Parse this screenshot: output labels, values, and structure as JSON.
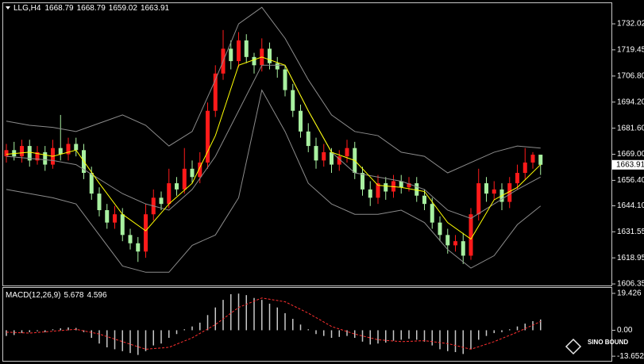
{
  "chart_data": [
    {
      "type": "candlestick",
      "title": "LLG,H4",
      "up_color": "#ff1a1a",
      "down_color": "#a8f0a0",
      "open": [
        1668,
        1671,
        1668,
        1673,
        1666,
        1670,
        1664,
        1672,
        1669,
        1674,
        1671,
        1660,
        1650,
        1642,
        1636,
        1640,
        1630,
        1626,
        1622,
        1640,
        1648,
        1645,
        1655,
        1652,
        1662,
        1658,
        1665,
        1690,
        1708,
        1720,
        1714,
        1724,
        1716,
        1712,
        1720,
        1713,
        1710,
        1700,
        1690,
        1680,
        1673,
        1666,
        1670,
        1664,
        1668,
        1672,
        1660,
        1652,
        1648,
        1655,
        1651,
        1656,
        1653,
        1655,
        1649,
        1645,
        1636,
        1630,
        1625,
        1627,
        1620,
        1640,
        1655,
        1650,
        1652,
        1646,
        1655,
        1660,
        1665,
        1668.79
      ],
      "high": [
        1674,
        1675,
        1676,
        1676,
        1673,
        1673,
        1676,
        1688,
        1677,
        1677,
        1674,
        1663,
        1653,
        1645,
        1644,
        1643,
        1633,
        1629,
        1645,
        1652,
        1651,
        1662,
        1658,
        1672,
        1666,
        1670,
        1694,
        1712,
        1729,
        1724,
        1728,
        1727,
        1718,
        1725,
        1723,
        1716,
        1712,
        1703,
        1693,
        1684,
        1677,
        1674,
        1672,
        1671,
        1676,
        1675,
        1663,
        1656,
        1659,
        1658,
        1659,
        1659,
        1658,
        1658,
        1652,
        1648,
        1639,
        1633,
        1630,
        1631,
        1643,
        1662,
        1658,
        1656,
        1655,
        1658,
        1664,
        1672,
        1670,
        1668.79
      ],
      "low": [
        1665,
        1666,
        1665,
        1663,
        1664,
        1661,
        1662,
        1666,
        1666,
        1668,
        1657,
        1647,
        1639,
        1633,
        1633,
        1627,
        1623,
        1617,
        1619,
        1637,
        1642,
        1643,
        1649,
        1650,
        1655,
        1655,
        1662,
        1687,
        1705,
        1710,
        1711,
        1713,
        1708,
        1709,
        1710,
        1706,
        1697,
        1687,
        1677,
        1670,
        1662,
        1663,
        1660,
        1661,
        1665,
        1657,
        1649,
        1644,
        1645,
        1647,
        1648,
        1650,
        1651,
        1646,
        1642,
        1633,
        1627,
        1621,
        1622,
        1616,
        1618,
        1637,
        1646,
        1647,
        1642,
        1643,
        1652,
        1657,
        1662,
        1659.02
      ],
      "close": [
        1671,
        1668,
        1673,
        1666,
        1670,
        1664,
        1672,
        1669,
        1674,
        1671,
        1660,
        1650,
        1642,
        1636,
        1640,
        1630,
        1626,
        1622,
        1640,
        1648,
        1645,
        1655,
        1652,
        1662,
        1658,
        1665,
        1690,
        1708,
        1720,
        1714,
        1724,
        1716,
        1712,
        1720,
        1713,
        1710,
        1700,
        1690,
        1680,
        1673,
        1666,
        1670,
        1664,
        1668,
        1672,
        1660,
        1652,
        1648,
        1655,
        1651,
        1656,
        1653,
        1655,
        1649,
        1645,
        1636,
        1630,
        1625,
        1627,
        1620,
        1640,
        1655,
        1650,
        1652,
        1646,
        1655,
        1660,
        1665,
        1668.79,
        1663.91
      ],
      "overlay_x": [
        0,
        3,
        6,
        9,
        12,
        15,
        18,
        21,
        24,
        27,
        30,
        33,
        36,
        39,
        42,
        45,
        48,
        51,
        54,
        57,
        60,
        63,
        66,
        69
      ],
      "overlays": [
        {
          "color": "#8c8c8c",
          "values": [
            1685,
            1683,
            1682,
            1680,
            1684,
            1688,
            1683,
            1673,
            1680,
            1705,
            1732,
            1740,
            1725,
            1705,
            1688,
            1680,
            1678,
            1670,
            1668,
            1660,
            1665,
            1670,
            1673,
            1672
          ]
        },
        {
          "color": "#8c8c8c",
          "values": [
            1668,
            1667,
            1666,
            1664,
            1657,
            1650,
            1645,
            1642,
            1652,
            1668,
            1690,
            1712,
            1712,
            1690,
            1670,
            1660,
            1658,
            1656,
            1652,
            1642,
            1638,
            1645,
            1652,
            1658
          ]
        },
        {
          "color": "#8c8c8c",
          "values": [
            1652,
            1650,
            1648,
            1645,
            1630,
            1615,
            1612,
            1612,
            1625,
            1630,
            1648,
            1700,
            1680,
            1655,
            1645,
            1640,
            1640,
            1642,
            1636,
            1623,
            1614,
            1620,
            1635,
            1644
          ]
        },
        {
          "color": "#ffff00",
          "values": [
            1669,
            1670,
            1668,
            1671,
            1655,
            1640,
            1632,
            1645,
            1655,
            1678,
            1712,
            1716,
            1712,
            1690,
            1670,
            1666,
            1654,
            1653,
            1651,
            1636,
            1628,
            1647,
            1653,
            1664
          ]
        }
      ],
      "ylim": [
        1605.6,
        1742
      ],
      "yticks": [
        1732.02,
        1719.45,
        {
          "value": 1706.8,
          "label": "1706.80"
        },
        {
          "value": 1694.2,
          "label": "1694.20"
        },
        {
          "value": 1681.6,
          "label": "1681.60"
        },
        {
          "value": 1669,
          "label": "1669.00"
        },
        {
          "value": 1656.4,
          "label": "1656.40"
        },
        {
          "value": 1644.1,
          "label": "1644.10"
        },
        1631.55,
        1618.95,
        1606.35
      ]
    },
    {
      "type": "macd",
      "title": "MACD(12,26,9)",
      "color": "#c8c8c8",
      "values": [
        -3,
        -2.5,
        -1.5,
        -1,
        -0.5,
        -1,
        0.5,
        1,
        1.5,
        1.2,
        -1,
        -4,
        -7,
        -9,
        -10,
        -11,
        -12,
        -13,
        -11,
        -8,
        -7,
        -4,
        -2,
        0.5,
        2,
        4,
        8,
        12,
        16,
        19,
        19.3,
        18.5,
        17,
        16,
        14,
        12,
        9,
        6,
        3,
        0.5,
        -2,
        -3,
        -4,
        -3.5,
        -3,
        -4,
        -6,
        -7.5,
        -7,
        -6.5,
        -5.5,
        -5,
        -4.5,
        -5,
        -6,
        -8,
        -10,
        -11,
        -11.5,
        -12.5,
        -10,
        -5,
        -3,
        -1.5,
        -1,
        0.5,
        2,
        3.5,
        4.8,
        5.678
      ],
      "signal": {
        "color": "#ff3030",
        "x": [
          0,
          3,
          6,
          9,
          12,
          15,
          18,
          21,
          24,
          27,
          30,
          33,
          36,
          39,
          42,
          45,
          48,
          51,
          54,
          57,
          60,
          63,
          66,
          69
        ],
        "values": [
          -1,
          -1.5,
          -0.5,
          0.5,
          -2,
          -6,
          -10,
          -9,
          -4,
          3,
          12,
          17,
          15,
          9,
          2,
          -2,
          -5,
          -6,
          -5.5,
          -7,
          -10,
          -6,
          -1,
          4.596
        ]
      },
      "ylim": [
        -16.1,
        21.9
      ],
      "yticks": [
        19.426,
        {
          "value": 0,
          "label": "0.00"
        },
        -13.652
      ]
    }
  ],
  "logo": "SINO BOUND"
}
